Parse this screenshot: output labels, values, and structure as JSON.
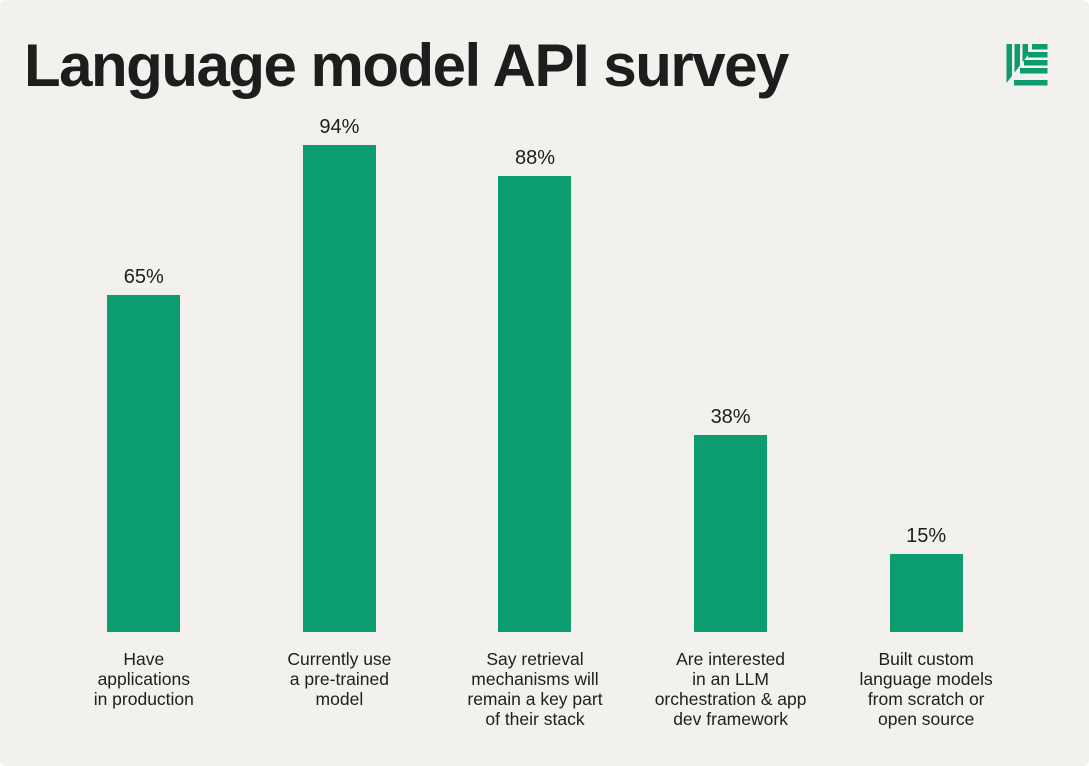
{
  "header": {
    "title": "Language model API survey",
    "logo": "striped-leaf-logo"
  },
  "colors": {
    "background": "#f2f1ed",
    "bar": "#0b9d6f",
    "logo": "#0d9a6e",
    "text": "#1d1d1d"
  },
  "chart_data": {
    "type": "bar",
    "title": "Language model API survey",
    "categories": [
      "Have applications in production",
      "Currently use a pre-trained model",
      "Say retrieval mechanisms will remain a key part of their stack",
      "Are interested in an LLM orchestration & app dev framework",
      "Built custom language models from scratch or open source"
    ],
    "category_lines": [
      [
        "Have",
        "applications",
        "in production"
      ],
      [
        "Currently use",
        "a pre-trained",
        "model"
      ],
      [
        "Say retrieval",
        "mechanisms will",
        "remain a key part",
        "of their stack"
      ],
      [
        "Are interested",
        "in an LLM",
        "orchestration & app",
        "dev framework"
      ],
      [
        "Built custom",
        "language models",
        "from scratch or",
        "open source"
      ]
    ],
    "values": [
      65,
      94,
      88,
      38,
      15
    ],
    "value_labels": [
      "65%",
      "94%",
      "88%",
      "38%",
      "15%"
    ],
    "unit": "%",
    "ylim": [
      0,
      100
    ],
    "grid": false,
    "legend": false,
    "bar_color": "#0b9d6f"
  }
}
